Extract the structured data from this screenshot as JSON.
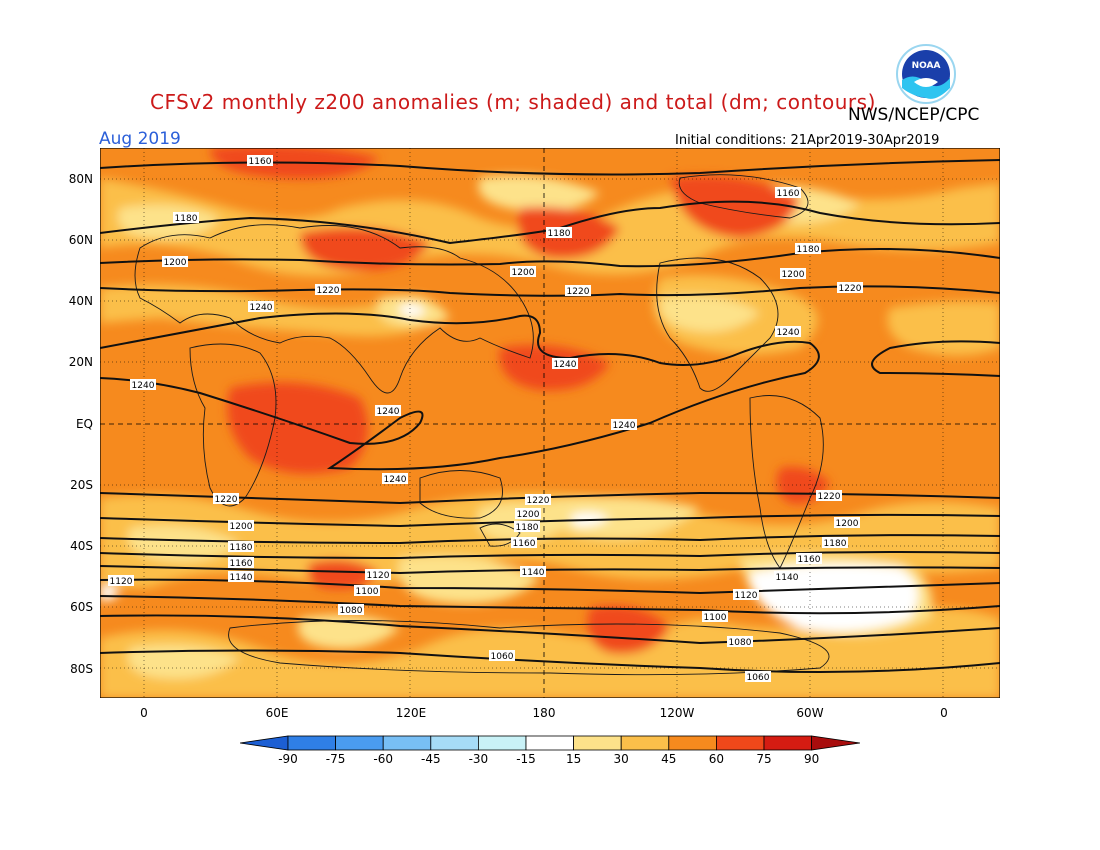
{
  "title": "CFSv2 monthly z200 anomalies (m; shaded) and total (dm; contours)",
  "month": "Aug 2019",
  "agency": "NWS/NCEP/CPC",
  "initial_conditions": "Initial conditions: 21Apr2019-30Apr2019",
  "logo_text": "NOAA",
  "latitude_labels": [
    "80N",
    "60N",
    "40N",
    "20N",
    "EQ",
    "20S",
    "40S",
    "60S",
    "80S"
  ],
  "longitude_labels": [
    "0",
    "60E",
    "120E",
    "180",
    "120W",
    "60W",
    "0"
  ],
  "colorbar": {
    "ticks": [
      "-90",
      "-75",
      "-60",
      "-45",
      "-30",
      "-15",
      "15",
      "30",
      "45",
      "60",
      "75",
      "90"
    ],
    "colors": [
      "#1c5fd4",
      "#2f7fe6",
      "#4a9cf0",
      "#78bff5",
      "#a6dcf7",
      "#c9f2f7",
      "#ffffff",
      "#fde28a",
      "#fbbf4a",
      "#f68a1e",
      "#f0481a",
      "#d51c12",
      "#a80d0d"
    ]
  },
  "contour_labels": [
    "1160",
    "1180",
    "1200",
    "1220",
    "1240",
    "1140",
    "1120",
    "1100",
    "1080",
    "1060"
  ]
}
